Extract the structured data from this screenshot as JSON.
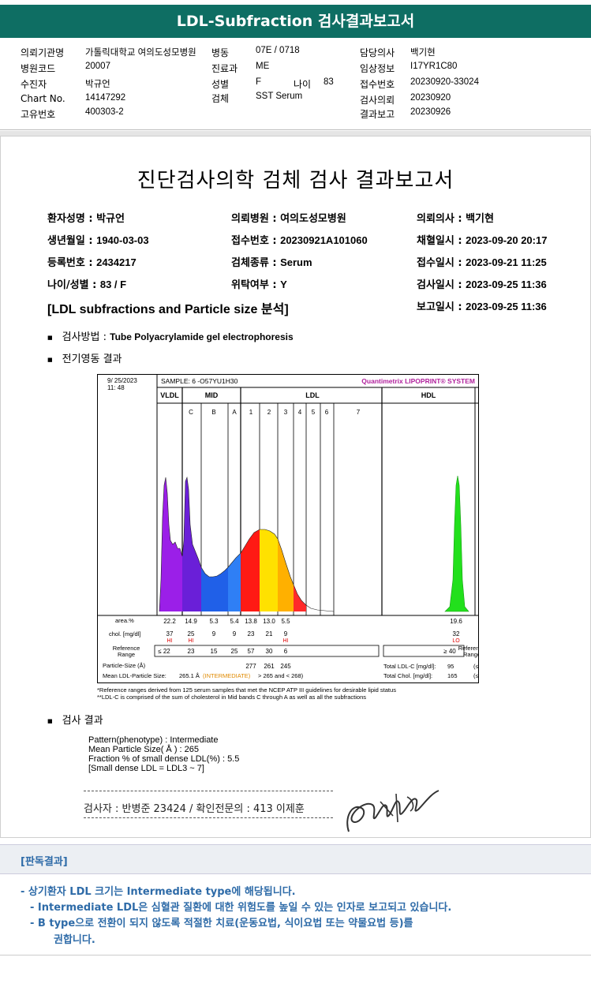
{
  "title": "LDL-Subfraction 검사결과보고서",
  "header": {
    "col1": [
      {
        "label": "의뢰기관명",
        "value": "가톨릭대학교 여의도성모병원"
      },
      {
        "label": "병원코드",
        "value": "20007"
      },
      {
        "label": "수진자",
        "value": "박규언"
      },
      {
        "label": "Chart No.",
        "value": "14147292"
      },
      {
        "label": "고유번호",
        "value": "400303-2"
      }
    ],
    "col2": [
      {
        "label": "병동",
        "value": "07E / 0718"
      },
      {
        "label": "진료과",
        "value": "ME"
      },
      {
        "label": "성별",
        "value": "F"
      },
      {
        "label": "검체",
        "value": "SST Serum"
      }
    ],
    "age_label": "나이",
    "age_value": "83",
    "col3": [
      {
        "label": "담당의사",
        "value": "백기현"
      },
      {
        "label": "임상정보",
        "value": "I17YR1C80"
      },
      {
        "label": "접수번호",
        "value": "20230920-33024"
      },
      {
        "label": "검사의뢰",
        "value": "20230920"
      },
      {
        "label": "결과보고",
        "value": "20230926"
      }
    ]
  },
  "report": {
    "title": "진단검사의학 검체 검사 결과보고서",
    "patient": [
      {
        "label": "환자성명 : ",
        "value": "박규언"
      },
      {
        "label": "생년월일 : ",
        "value": "1940-03-03"
      },
      {
        "label": "등록번호 : ",
        "value": "2434217"
      },
      {
        "label": "나이/성별 : ",
        "value": "83 / F"
      }
    ],
    "req": [
      {
        "label": "의뢰병원 : ",
        "value": "여의도성모병원"
      },
      {
        "label": "접수번호 : ",
        "value": "20230921A101060"
      },
      {
        "label": "검체종류 : ",
        "value": "Serum"
      },
      {
        "label": "위탁여부 : ",
        "value": "Y"
      }
    ],
    "dates": [
      {
        "label": "의뢰의사 : ",
        "value": "백기현"
      },
      {
        "label": "채혈일시 : ",
        "value": "2023-09-20 20:17"
      },
      {
        "label": "접수일시 : ",
        "value": "2023-09-21 11:25"
      },
      {
        "label": "검사일시 : ",
        "value": "2023-09-25 11:36"
      },
      {
        "label": "보고일시 : ",
        "value": "2023-09-25 11:36"
      }
    ],
    "section": "[LDL subfractions and Particle size 분석]",
    "method_label": "검사방법 : ",
    "method": "Tube Polyacrylamide gel electrophoresis",
    "electro_label": "전기영동 결과",
    "result_label": "검사 결과",
    "results": [
      "Pattern(phenotype) : Intermediate",
      "Mean Particle Size( Å ) : 265",
      "Fraction % of small dense LDL(%) : 5.5",
      "[Small dense LDL = LDL3 ~ 7]"
    ],
    "signer": "검사자 : 반병준  23424  /  확인전문의 : 413  이제훈"
  },
  "chart": {
    "date": "9/ 25/2023",
    "time": "11: 48",
    "sample": "SAMPLE:   6 -O57YU1H30",
    "brand": "Quantimetrix LIPOPRINT® SYSTEM",
    "regions": [
      "VLDL",
      "MID",
      "LDL",
      "HDL"
    ],
    "bands": [
      "C",
      "B",
      "A",
      "1",
      "2",
      "3",
      "4",
      "5",
      "6",
      "7"
    ],
    "row_labels": {
      "area": "area.%",
      "chol": "chol. [mg/dl]",
      "ref": "Reference Range",
      "ref_right": "Reference Range",
      "psize": "Particle-Size (Å)",
      "mean": "Mean LDL-Particle Size:"
    },
    "area": [
      "22.2",
      "14.9",
      "5.3",
      "5.4",
      "13.8",
      "13.0",
      "5.5",
      "19.6"
    ],
    "chol": [
      "37",
      "25",
      "9",
      "9",
      "23",
      "21",
      "9",
      "32"
    ],
    "flags": [
      "HI",
      "HI",
      "",
      "",
      "",
      "",
      "HI",
      "LO"
    ],
    "ref": [
      "≤ 22",
      "23",
      "15",
      "25",
      "57",
      "30",
      "6",
      "≥ 40"
    ],
    "psize": [
      "277",
      "261",
      "245"
    ],
    "mean_value": "265.1 Å",
    "mean_tag": "(INTERMEDIATE)",
    "mean_rest": "> 265 and < 268)",
    "total_ldl_label": "Total LDL-C [mg/dl]:",
    "total_ldl": "95",
    "total_ldl_ref": "(≤ 130)",
    "total_chol_label": "Total Chol. [mg/dl]:",
    "total_chol": "165",
    "total_chol_ref": "(≤ 200)",
    "note1": "*Reference ranges derived from 125 serum samples that met the NCEP ATP III guidelines for desirable lipid status",
    "note2": "**LDL-C is comprised of the sum of cholesterol in Mid bands C through A as well as all the subfractions",
    "colors": {
      "vldl": "#9b1fe8",
      "midc": "#6a1fd8",
      "midb": "#2060e8",
      "mida": "#2f7ff5",
      "ldl1": "#ff1a14",
      "ldl2": "#ffe100",
      "ldl3": "#ffb000",
      "ldl4": "#ff2a2a",
      "hdl": "#22e01c"
    }
  },
  "interpret": {
    "heading": "[판독결과]",
    "lines": [
      "-  상기환자 LDL 크기는 Intermediate type에 해당됩니다.",
      "-  Intermediate LDL은 심혈관 질환에 대한 위험도를 높일 수 있는 인자로 보고되고 있습니다.",
      "-  B type으로 전환이 되지 않도록 적절한 치료(운동요법, 식이요법 또는 약물요법 등)를",
      "권합니다."
    ]
  }
}
